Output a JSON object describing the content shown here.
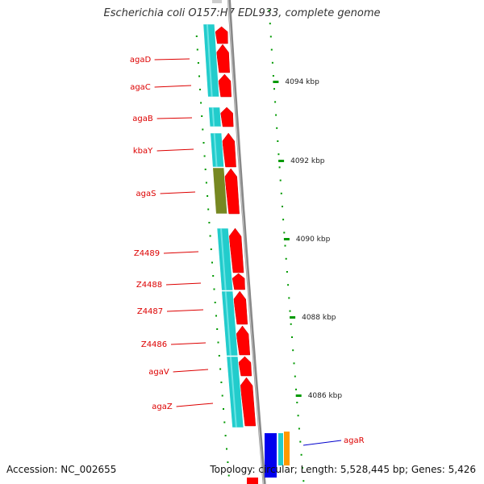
{
  "title": "Escherichia coli O157:H7 EDL933, complete genome",
  "footer": {
    "accession": "Accession: NC_002655",
    "topology": "Topology: circular; Length: 5,528,445 bp; Genes: 5,426"
  },
  "colors": {
    "backbone": "#888888",
    "forward_gene": "#ff0000",
    "cds_cyan": "#22cccc",
    "cds_olive": "#778822",
    "cds_blue": "#0000ee",
    "cds_orange": "#ff9900",
    "tick": "#009900",
    "label_red": "#dd0000",
    "label_blue": "#0000cc"
  },
  "gene_labels": [
    {
      "name": "agaD",
      "color": "#dd0000"
    },
    {
      "name": "agaC",
      "color": "#dd0000"
    },
    {
      "name": "agaB",
      "color": "#dd0000"
    },
    {
      "name": "kbaY",
      "color": "#dd0000"
    },
    {
      "name": "agaS",
      "color": "#dd0000"
    },
    {
      "name": "Z4489",
      "color": "#dd0000"
    },
    {
      "name": "Z4488",
      "color": "#dd0000"
    },
    {
      "name": "Z4487",
      "color": "#dd0000"
    },
    {
      "name": "Z4486",
      "color": "#dd0000"
    },
    {
      "name": "agaV",
      "color": "#dd0000"
    },
    {
      "name": "agaZ",
      "color": "#dd0000"
    },
    {
      "name": "agaR",
      "color": "#0000cc"
    }
  ],
  "scale_labels": [
    "4094 kbp",
    "4092 kbp",
    "4090 kbp",
    "4088 kbp",
    "4086 kbp"
  ]
}
